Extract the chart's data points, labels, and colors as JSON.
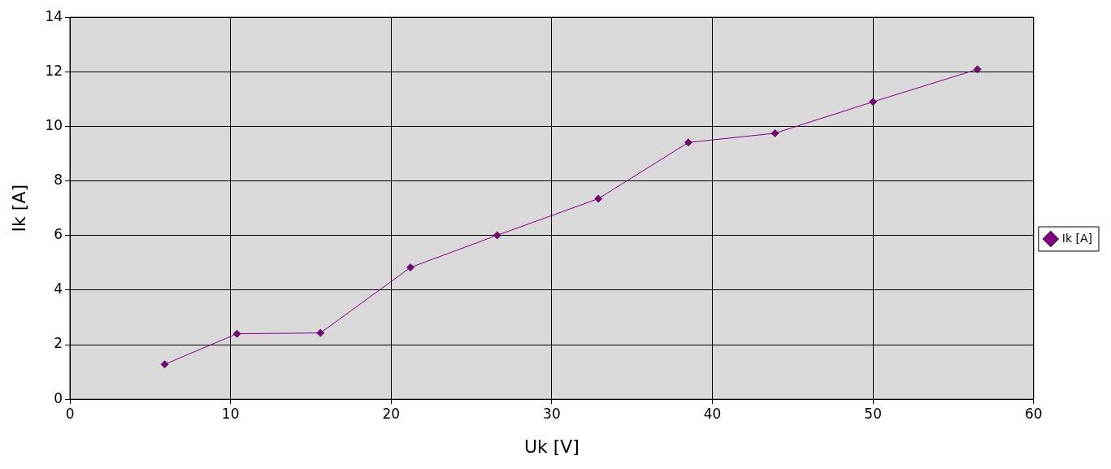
{
  "chart_data": {
    "type": "line",
    "xlabel": "Uk [V]",
    "ylabel": "Ik [A]",
    "x": [
      5.9,
      10.4,
      15.6,
      21.2,
      26.6,
      32.9,
      38.5,
      43.9,
      50.0,
      56.5
    ],
    "series": [
      {
        "name": "Ik [A]",
        "color": "#800080",
        "values": [
          1.28,
          2.4,
          2.43,
          4.83,
          6.01,
          7.35,
          9.41,
          9.75,
          10.9,
          12.09
        ]
      }
    ],
    "xlim": [
      0,
      60
    ],
    "xticks": [
      0,
      10,
      20,
      30,
      40,
      50,
      60
    ],
    "ylim": [
      0,
      14
    ],
    "yticks": [
      0,
      2,
      4,
      6,
      8,
      10,
      12,
      14
    ],
    "grid": true,
    "legend": "right",
    "marker": "diamond",
    "line_style": "solid"
  }
}
